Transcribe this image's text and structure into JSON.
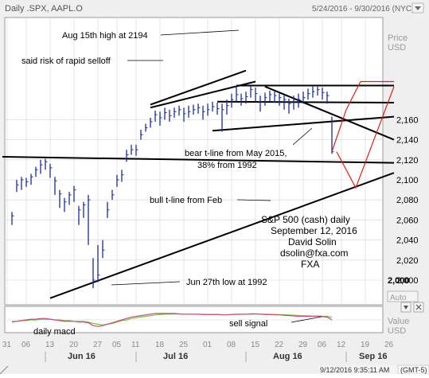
{
  "window": {
    "title": "Daily .SPX, AAPL.O",
    "date_range": "5/24/2016 - 9/30/2016 (NYC)",
    "timestamp": "9/12/2016 9:35:11 AM",
    "timezone": "(GMT-5)"
  },
  "price_panel": {
    "label_line1": "Price",
    "label_line2": "USD",
    "auto_label": "Auto"
  },
  "indicator_panel": {
    "label_line1": "Value",
    "label_line2": "USD"
  },
  "colors": {
    "price_line": "#1a2e8c",
    "trendline": "#000000",
    "projection": "#e02010",
    "macd": "#c05080",
    "signal": "#7cbf3a",
    "panel_bg": "#ffffff",
    "chrome_bg": "#efefef",
    "grid": "#d6d6d6"
  },
  "icons": {
    "down_arrow": "chevron-down-icon",
    "up_arrow": "chevron-up-icon",
    "close": "close-icon"
  },
  "chart_data": {
    "type": "line",
    "title": "",
    "ylabel": "Price USD",
    "ylim": [
      1985,
      2215
    ],
    "yticks": [
      2000,
      2020,
      2040,
      2060,
      2080,
      2100,
      2120,
      2140,
      2160
    ],
    "ytick_labels": [
      "2,000",
      "2,020",
      "2,040",
      "2,060",
      "2,080",
      "2,100",
      "2,120",
      "2,140",
      "2,160"
    ],
    "x_day_labels": [
      "31",
      "06",
      "13",
      "20",
      "27",
      "05",
      "11",
      "18",
      "25",
      "01",
      "08",
      "15",
      "22",
      "29",
      "06",
      "12",
      "19",
      "26"
    ],
    "x_month_labels": [
      "Jun 16",
      "Jul 16",
      "Aug 16",
      "Sep 16"
    ],
    "series": [
      {
        "values": [
          2064,
          2095,
          2100,
          2098,
          2103,
          2110,
          2115,
          2118,
          2112,
          2099,
          2086,
          2078,
          2085,
          2090,
          2070,
          2075,
          2080,
          2000,
          2005,
          2030,
          2070,
          2085,
          2100,
          2105,
          2125,
          2130,
          2130,
          2145,
          2152,
          2158,
          2165,
          2162,
          2167,
          2164,
          2168,
          2170,
          2166,
          2168,
          2170,
          2172,
          2168,
          2170,
          2173,
          2171,
          2170,
          2174,
          2180,
          2185,
          2181,
          2183,
          2190,
          2186,
          2178,
          2182,
          2185,
          2184,
          2182,
          2180,
          2176,
          2178,
          2180,
          2182,
          2186,
          2188,
          2190,
          2187,
          2184,
          2128
        ]
      }
    ],
    "lows": [
      2055,
      2088,
      2090,
      2093,
      2095,
      2103,
      2106,
      2110,
      2102,
      2085,
      2072,
      2068,
      2075,
      2078,
      2055,
      2062,
      2035,
      1992,
      1998,
      2022,
      2062,
      2080,
      2093,
      2098,
      2118,
      2125,
      2124,
      2140,
      2148,
      2152,
      2158,
      2154,
      2160,
      2158,
      2162,
      2164,
      2158,
      2162,
      2165,
      2166,
      2160,
      2164,
      2168,
      2165,
      2148,
      2165,
      2172,
      2178,
      2174,
      2176,
      2182,
      2178,
      2168,
      2174,
      2178,
      2177,
      2174,
      2170,
      2166,
      2170,
      2172,
      2176,
      2180,
      2182,
      2184,
      2180,
      2176,
      2126
    ],
    "highs": [
      2068,
      2100,
      2103,
      2102,
      2106,
      2113,
      2120,
      2121,
      2116,
      2103,
      2090,
      2082,
      2088,
      2094,
      2074,
      2078,
      2085,
      2022,
      2035,
      2040,
      2078,
      2090,
      2105,
      2110,
      2130,
      2135,
      2135,
      2150,
      2156,
      2162,
      2169,
      2168,
      2172,
      2170,
      2172,
      2174,
      2172,
      2174,
      2175,
      2176,
      2174,
      2176,
      2178,
      2177,
      2176,
      2180,
      2186,
      2194,
      2186,
      2188,
      2194,
      2192,
      2184,
      2187,
      2189,
      2188,
      2186,
      2185,
      2181,
      2184,
      2186,
      2188,
      2191,
      2193,
      2193,
      2192,
      2188,
      2163
    ],
    "macd": [
      -0.3,
      -0.2,
      -0.1,
      0.0,
      0.1,
      0.1,
      0.2,
      0.2,
      0.1,
      0.0,
      -0.1,
      -0.2,
      -0.2,
      -0.2,
      -0.3,
      -0.3,
      -0.4,
      -0.8,
      -0.9,
      -0.8,
      -0.6,
      -0.4,
      -0.2,
      0.0,
      0.2,
      0.4,
      0.5,
      0.6,
      0.7,
      0.8,
      0.9,
      0.9,
      0.9,
      0.9,
      0.9,
      0.85,
      0.8,
      0.8,
      0.8,
      0.8,
      0.75,
      0.75,
      0.75,
      0.75,
      0.7,
      0.7,
      0.75,
      0.8,
      0.8,
      0.8,
      0.85,
      0.85,
      0.8,
      0.75,
      0.75,
      0.7,
      0.7,
      0.65,
      0.6,
      0.55,
      0.5,
      0.5,
      0.5,
      0.5,
      0.5,
      0.45,
      0.4,
      0.0
    ],
    "signal": [
      -0.2,
      -0.2,
      -0.1,
      -0.1,
      0.0,
      0.0,
      0.1,
      0.1,
      0.1,
      0.0,
      0.0,
      -0.1,
      -0.1,
      -0.2,
      -0.2,
      -0.2,
      -0.3,
      -0.5,
      -0.6,
      -0.7,
      -0.6,
      -0.5,
      -0.3,
      -0.1,
      0.0,
      0.2,
      0.3,
      0.4,
      0.5,
      0.6,
      0.7,
      0.75,
      0.8,
      0.8,
      0.82,
      0.82,
      0.8,
      0.8,
      0.8,
      0.8,
      0.78,
      0.77,
      0.76,
      0.76,
      0.74,
      0.73,
      0.74,
      0.76,
      0.78,
      0.79,
      0.8,
      0.82,
      0.81,
      0.8,
      0.78,
      0.76,
      0.74,
      0.72,
      0.69,
      0.66,
      0.62,
      0.59,
      0.57,
      0.55,
      0.54,
      0.52,
      0.5,
      0.35
    ],
    "trendlines": [
      {
        "x0": -2,
        "y0": 2123,
        "x1": 80,
        "y1": 2117
      },
      {
        "x0": 8,
        "y0": 1982,
        "x1": 80,
        "y1": 2107
      },
      {
        "x0": 42,
        "y0": 2149,
        "x1": 80,
        "y1": 2163
      },
      {
        "x0": 43,
        "y0": 2178,
        "x1": 80,
        "y1": 2177
      },
      {
        "x0": 29,
        "y0": 2175,
        "x1": 49,
        "y1": 2209
      },
      {
        "x0": 29,
        "y0": 2172,
        "x1": 51,
        "y1": 2198
      },
      {
        "x0": 53,
        "y0": 2193,
        "x1": 80,
        "y1": 2140
      },
      {
        "x0": 47,
        "y0": 2194,
        "x1": 80,
        "y1": 2194
      }
    ],
    "projections": [
      {
        "x": [
          67,
          70,
          73,
          80
        ],
        "y": [
          2128,
          2170,
          2198,
          2198
        ]
      },
      {
        "x": [
          68,
          72,
          80
        ],
        "y": [
          2128,
          2092,
          2193
        ]
      }
    ],
    "annotations": {
      "a1": "Aug 15th high at 2194",
      "a2": "said risk of rapid selloff",
      "a3_l1": "bear t-line from May 2015,",
      "a3_l2": "38% from 1992",
      "a4": "bull t-line from Feb",
      "a5": "Jun 27th low at 1992",
      "a6": "sell signal",
      "a7": "daily macd",
      "sig_l1": "S&P 500 (cash) daily",
      "sig_l2": "September 12, 2016",
      "sig_l3": "David Solin",
      "sig_l4": "dsolin@fxa.com",
      "sig_l5": "FXA",
      "last_value": "2,000"
    }
  }
}
